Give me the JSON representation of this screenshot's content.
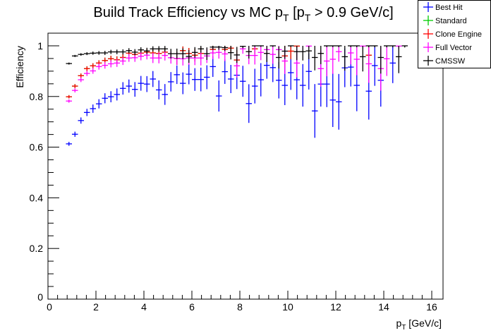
{
  "chart_data": {
    "type": "scatter",
    "title": "Build Track Efficiency vs MC p",
    "title_sub": "T",
    "title_rest_1": " [p",
    "title_rest_2": " > 0.9 GeV/c]",
    "xlabel": "p",
    "xlabel_sub": "T",
    "xlabel_rest": " [GeV/c]",
    "ylabel": "Efficiency",
    "xlim": [
      0,
      16.47
    ],
    "ylim": [
      0,
      1.05
    ],
    "x_ticks": [
      "0",
      "2",
      "4",
      "6",
      "8",
      "10",
      "12",
      "14",
      "16"
    ],
    "y_ticks": [
      "0",
      "0.2",
      "0.4",
      "0.6",
      "0.8",
      "1"
    ],
    "legend_position": "top-right",
    "bin_start": 0.875,
    "bin_width": 0.25,
    "series": [
      {
        "name": "Best Hit",
        "color": "#0000ff",
        "values": [
          0.613,
          0.651,
          0.705,
          0.737,
          0.752,
          0.771,
          0.793,
          0.799,
          0.808,
          0.832,
          0.841,
          0.828,
          0.852,
          0.849,
          0.869,
          0.826,
          0.808,
          0.858,
          0.886,
          0.852,
          0.888,
          0.867,
          0.867,
          0.876,
          0.918,
          0.802,
          0.898,
          0.869,
          0.884,
          0.86,
          0.772,
          0.841,
          0.866,
          0.923,
          0.914,
          0.864,
          0.844,
          0.894,
          0.866,
          0.844,
          0.899,
          0.743,
          0.849,
          0.849,
          0.786,
          0.779,
          0.913,
          0.916,
          0.844,
          null,
          0.821,
          0.922,
          0.864,
          null,
          0.932,
          null,
          null
        ]
      },
      {
        "name": "Standard",
        "color": "#00cc00",
        "values": [
          0.799,
          0.841,
          0.882,
          0.91,
          0.921,
          0.932,
          0.942,
          0.949,
          0.945,
          0.954,
          0.971,
          0.966,
          0.971,
          0.975,
          0.972,
          0.97,
          0.975,
          null,
          0.95,
          0.981,
          0.97,
          0.963,
          0.97,
          null,
          0.986,
          null,
          0.986,
          0.991,
          0.944,
          null,
          null,
          0.988,
          null,
          null,
          null,
          null,
          0.96,
          0.979,
          0.999,
          null,
          null,
          null,
          null,
          null,
          null,
          null,
          null,
          null,
          null,
          null,
          0.963,
          null,
          null,
          null,
          null,
          null,
          null
        ]
      },
      {
        "name": "Clone Engine",
        "color": "#ff0000",
        "values": [
          0.799,
          0.841,
          0.882,
          0.91,
          0.921,
          0.932,
          0.942,
          0.949,
          0.945,
          0.954,
          0.971,
          0.966,
          0.971,
          0.975,
          0.972,
          0.97,
          0.975,
          null,
          0.95,
          0.981,
          0.97,
          0.963,
          0.97,
          null,
          0.986,
          null,
          0.986,
          0.991,
          0.944,
          null,
          null,
          0.988,
          null,
          null,
          null,
          null,
          0.96,
          0.979,
          0.999,
          null,
          null,
          null,
          null,
          null,
          null,
          null,
          null,
          null,
          null,
          null,
          0.963,
          null,
          null,
          null,
          null,
          null,
          null
        ]
      },
      {
        "name": "Full Vector",
        "color": "#ff00ff",
        "values": [
          0.782,
          0.824,
          0.866,
          0.891,
          0.901,
          0.918,
          0.923,
          0.929,
          0.932,
          0.94,
          0.952,
          0.953,
          0.959,
          0.963,
          0.952,
          0.952,
          0.962,
          0.953,
          0.95,
          0.949,
          0.952,
          0.952,
          0.952,
          0.96,
          0.972,
          0.974,
          0.968,
          null,
          0.921,
          0.988,
          0.962,
          0.962,
          0.974,
          0.985,
          0.966,
          0.985,
          0.94,
          null,
          0.932,
          null,
          0.999,
          null,
          0.91,
          0.94,
          0.947,
          0.977,
          null,
          0.972,
          0.947,
          0.999,
          0.929,
          null,
          0.91,
          0.949,
          null,
          0.999,
          null
        ]
      },
      {
        "name": "CMSSW",
        "color": "#000000",
        "values": [
          0.93,
          0.96,
          0.966,
          0.969,
          0.971,
          0.972,
          0.972,
          0.976,
          0.976,
          0.976,
          0.981,
          0.975,
          0.984,
          0.98,
          0.988,
          0.988,
          0.988,
          0.969,
          0.969,
          0.969,
          0.958,
          0.974,
          0.988,
          0.969,
          0.995,
          0.995,
          0.993,
          0.973,
          0.964,
          0.998,
          0.977,
          1.0,
          1.0,
          0.97,
          1.0,
          0.954,
          0.979,
          1.0,
          0.977,
          0.977,
          0.98,
          0.954,
          0.97,
          1.0,
          1.0,
          1.0,
          0.957,
          1.0,
          1.0,
          0.957,
          1.0,
          1.0,
          0.954,
          1.0,
          1.0,
          0.957,
          1.0
        ]
      }
    ]
  }
}
